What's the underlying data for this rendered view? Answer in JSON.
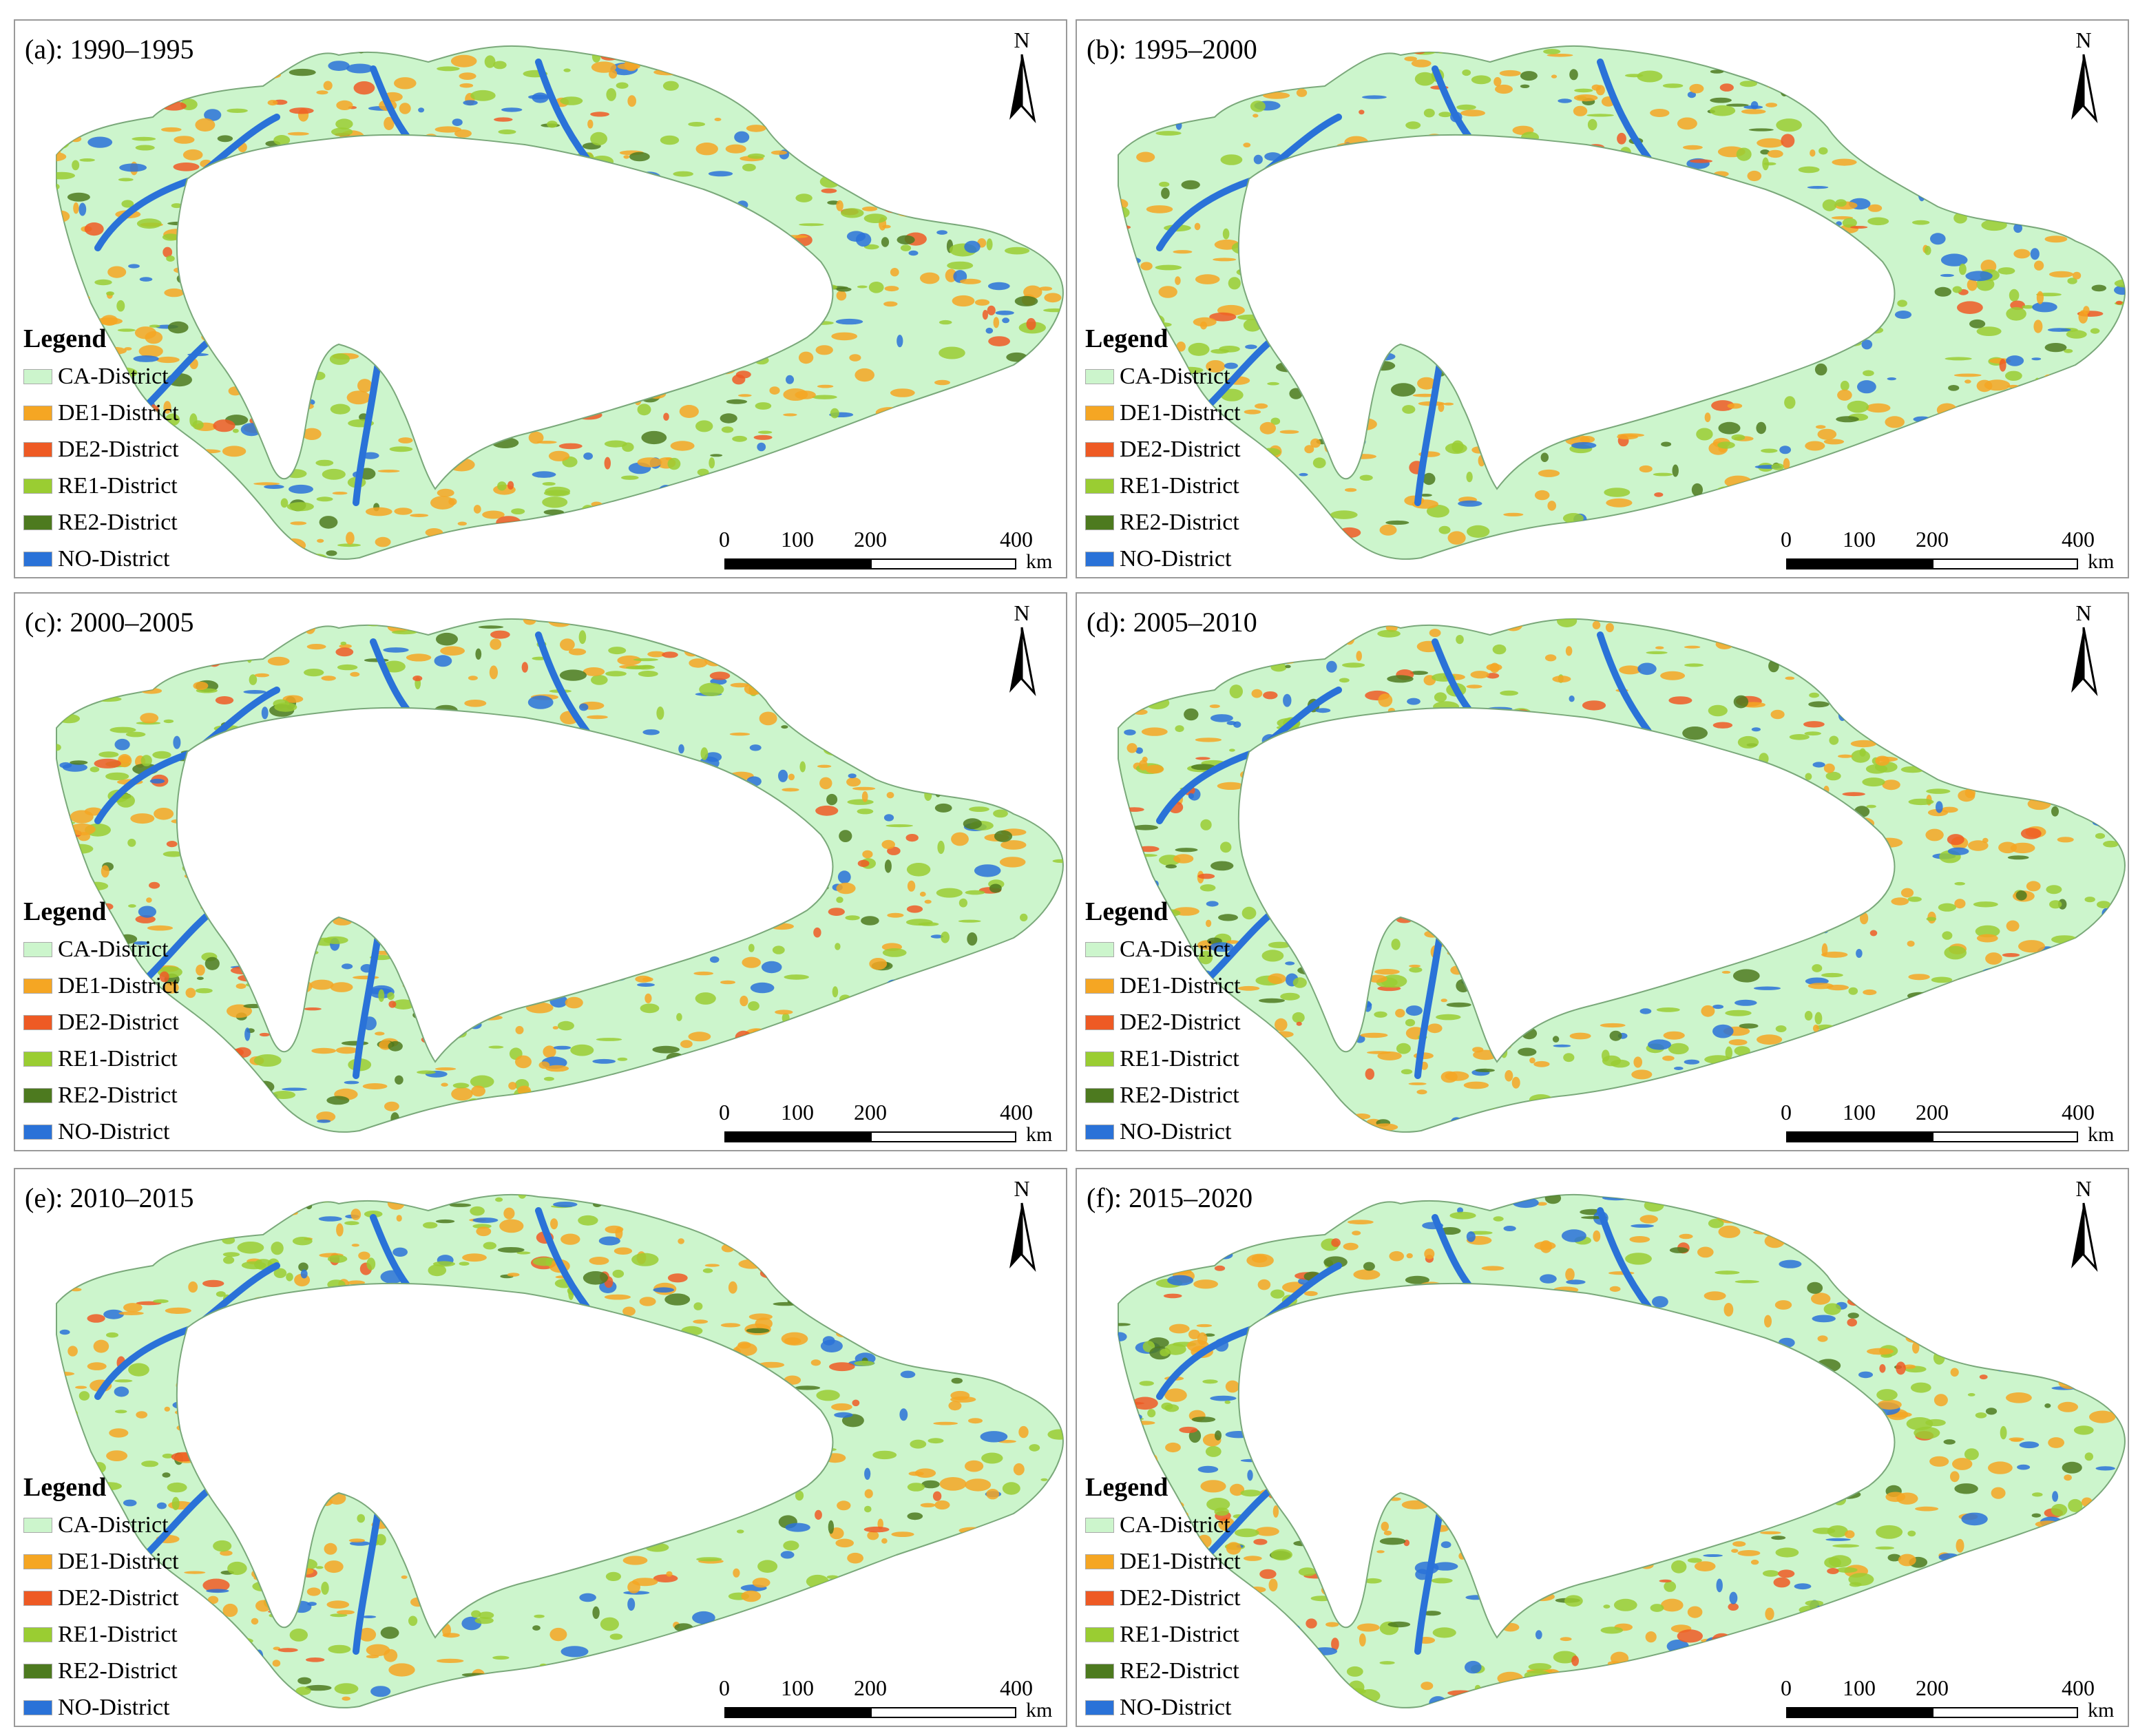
{
  "panels": [
    {
      "label": "(a): 1990–1995"
    },
    {
      "label": "(b): 1995–2000"
    },
    {
      "label": "(c): 2000–2005"
    },
    {
      "label": "(d): 2005–2010"
    },
    {
      "label": "(e): 2010–2015"
    },
    {
      "label": "(f): 2015–2020"
    }
  ],
  "legend": {
    "title": "Legend",
    "items": [
      {
        "label": "CA-District",
        "color": "#ccf5cc"
      },
      {
        "label": "DE1-District",
        "color": "#f5a623"
      },
      {
        "label": "DE2-District",
        "color": "#ee5a24"
      },
      {
        "label": "RE1-District",
        "color": "#9acd32"
      },
      {
        "label": "RE2-District",
        "color": "#4d7a1f"
      },
      {
        "label": "NO-District",
        "color": "#2a72d8"
      }
    ]
  },
  "north_arrow": {
    "label": "N"
  },
  "scale_bar": {
    "ticks": [
      "0",
      "100",
      "200",
      "400"
    ],
    "unit": "km"
  }
}
